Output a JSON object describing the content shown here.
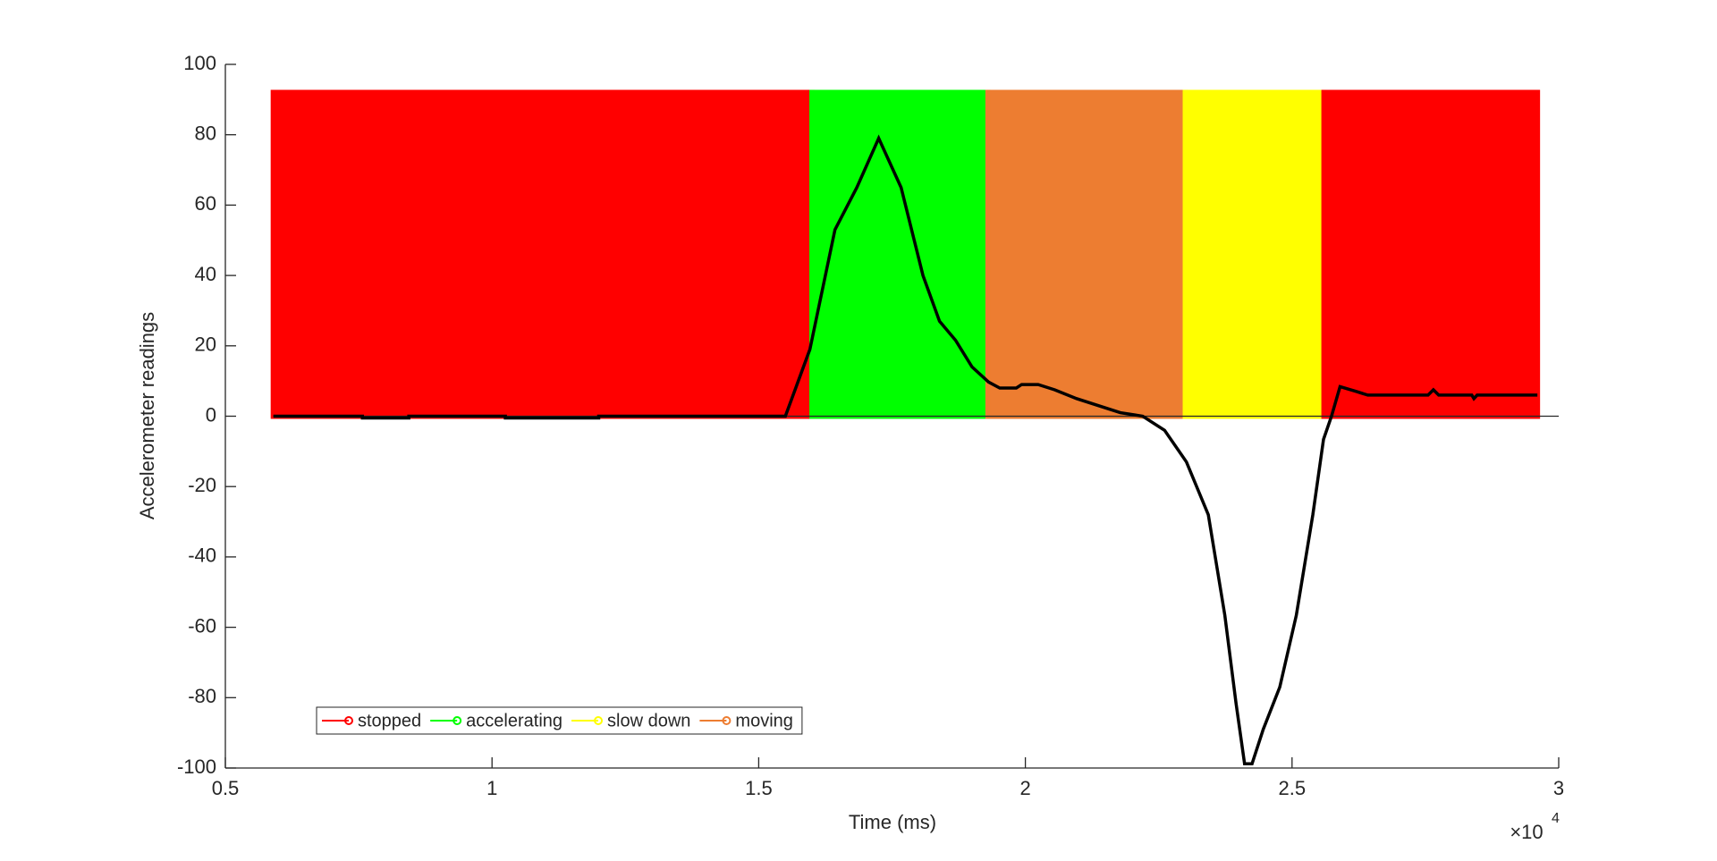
{
  "chart_data": {
    "type": "line",
    "xlabel": "Time (ms)",
    "ylabel": "Accelerometer readings",
    "x_multiplier": {
      "base": "×10",
      "exponent": "4"
    },
    "xlim": [
      5000,
      30000
    ],
    "ylim": [
      -100,
      100
    ],
    "xticks": [
      {
        "value": 5000,
        "label": "0.5"
      },
      {
        "value": 10000,
        "label": "1"
      },
      {
        "value": 15000,
        "label": "1.5"
      },
      {
        "value": 20000,
        "label": "2"
      },
      {
        "value": 25000,
        "label": "2.5"
      },
      {
        "value": 30000,
        "label": "3"
      }
    ],
    "yticks": [
      -100,
      -80,
      -60,
      -40,
      -20,
      0,
      20,
      40,
      60,
      80,
      100
    ],
    "bands": {
      "bottom": 0,
      "top": 92,
      "items": [
        {
          "state": 0,
          "start": 5900,
          "end": 16000
        },
        {
          "state": 1,
          "start": 16000,
          "end": 19300
        },
        {
          "state": 3,
          "start": 19300,
          "end": 23000
        },
        {
          "state": 2,
          "start": 23000,
          "end": 25600
        },
        {
          "state": 0,
          "start": 25600,
          "end": 29600
        }
      ]
    },
    "legend": {
      "location": "southwest",
      "entries": [
        {
          "name": "stopped",
          "color": "#ff0000"
        },
        {
          "name": "accelerating",
          "color": "#00ff00"
        },
        {
          "name": "slow down",
          "color": "#ffff00"
        },
        {
          "name": "moving",
          "color": "#ed7d31"
        }
      ]
    },
    "series": [
      {
        "color": "#000000",
        "x": [
          5900,
          7570,
          7570,
          8440,
          8440,
          10250,
          10250,
          12000,
          12000,
          15500,
          15960,
          16430,
          16840,
          17250,
          17670,
          18080,
          18390,
          18690,
          19000,
          19310,
          19520,
          19830,
          19930,
          20240,
          20550,
          20960,
          21370,
          21780,
          22200,
          22610,
          23020,
          23430,
          23740,
          23950,
          24110,
          24250,
          24460,
          24770,
          25080,
          25390,
          25590,
          25740,
          25900,
          26210,
          26420,
          27550,
          27650,
          27750,
          28370,
          28410,
          28470,
          29600
        ],
        "values": [
          0,
          0,
          -0.5,
          -0.5,
          0,
          0,
          -0.5,
          -0.5,
          0,
          0,
          19,
          53,
          65,
          79,
          65,
          40,
          27,
          21.6,
          14,
          9.7,
          8,
          8,
          9,
          9,
          7.5,
          5,
          3,
          1,
          0,
          -4,
          -13,
          -28,
          -56.6,
          -81.6,
          -98.8,
          -98.8,
          -89,
          -77,
          -56.6,
          -28,
          -6.6,
          0,
          8.4,
          7,
          6,
          6,
          7.5,
          6,
          6,
          5,
          6,
          6
        ]
      }
    ]
  }
}
